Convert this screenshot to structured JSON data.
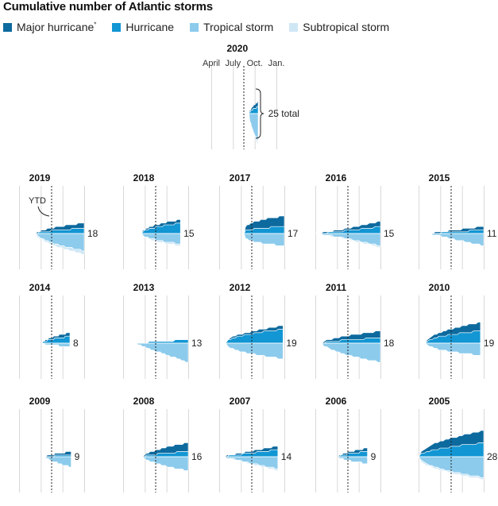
{
  "title": "Cumulative number of Atlantic storms",
  "legend": [
    {
      "label": "Major hurricane",
      "note": "*",
      "color": "#0d6a9e"
    },
    {
      "label": "Hurricane",
      "note": "",
      "color": "#1296d4"
    },
    {
      "label": "Tropical storm",
      "note": "",
      "color": "#8ccbec"
    },
    {
      "label": "Subtropical storm",
      "note": "",
      "color": "#cfe7f5"
    }
  ],
  "chart_data": {
    "type": "area",
    "description_units": "cumulative storm counts by date; above baseline = hurricanes (major darker), below baseline = tropical and subtropical storms",
    "month_ticks": [
      "April",
      "July",
      "Oct.",
      "Jan."
    ],
    "ytd_label": "YTD",
    "ytd_year": "2019",
    "total_suffix": "total",
    "years": [
      {
        "year": "2020",
        "total": 25,
        "major": 3,
        "hurricane": 4,
        "tropical": 16,
        "subtropical": 2,
        "start": 0.58,
        "end": 0.72,
        "shape": 0.6
      },
      {
        "year": "2019",
        "total": 18,
        "major": 3,
        "hurricane": 3,
        "tropical": 10,
        "subtropical": 2,
        "start": 0.25,
        "end": 1.0,
        "shape": 0.6
      },
      {
        "year": "2018",
        "total": 15,
        "major": 2,
        "hurricane": 6,
        "tropical": 6,
        "subtropical": 1,
        "start": 0.28,
        "end": 0.88,
        "shape": 0.5
      },
      {
        "year": "2017",
        "total": 17,
        "major": 6,
        "hurricane": 4,
        "tropical": 7,
        "subtropical": 0,
        "start": 0.38,
        "end": 1.0,
        "shape": 0.3
      },
      {
        "year": "2016",
        "total": 15,
        "major": 3,
        "hurricane": 4,
        "tropical": 7,
        "subtropical": 1,
        "start": 0.0,
        "end": 1.0,
        "shape": 1.2
      },
      {
        "year": "2015",
        "total": 11,
        "major": 2,
        "hurricane": 2,
        "tropical": 7,
        "subtropical": 0,
        "start": 0.15,
        "end": 1.0,
        "shape": 1.0
      },
      {
        "year": "2014",
        "total": 8,
        "major": 2,
        "hurricane": 4,
        "tropical": 2,
        "subtropical": 0,
        "start": 0.35,
        "end": 0.78,
        "shape": 0.6
      },
      {
        "year": "2013",
        "total": 13,
        "major": 0,
        "hurricane": 2,
        "tropical": 11,
        "subtropical": 0,
        "start": 0.2,
        "end": 1.0,
        "shape": 0.9
      },
      {
        "year": "2012",
        "total": 19,
        "major": 2,
        "hurricane": 8,
        "tropical": 9,
        "subtropical": 0,
        "start": 0.1,
        "end": 0.98,
        "shape": 0.5
      },
      {
        "year": "2011",
        "total": 18,
        "major": 4,
        "hurricane": 3,
        "tropical": 11,
        "subtropical": 0,
        "start": 0.1,
        "end": 1.0,
        "shape": 0.6
      },
      {
        "year": "2010",
        "total": 19,
        "major": 5,
        "hurricane": 7,
        "tropical": 7,
        "subtropical": 0,
        "start": 0.1,
        "end": 0.95,
        "shape": 0.5
      },
      {
        "year": "2009",
        "total": 9,
        "major": 2,
        "hurricane": 1,
        "tropical": 6,
        "subtropical": 0,
        "start": 0.4,
        "end": 0.8,
        "shape": 0.7
      },
      {
        "year": "2008",
        "total": 16,
        "major": 5,
        "hurricane": 3,
        "tropical": 8,
        "subtropical": 0,
        "start": 0.3,
        "end": 1.0,
        "shape": 0.6
      },
      {
        "year": "2007",
        "total": 14,
        "major": 2,
        "hurricane": 4,
        "tropical": 7,
        "subtropical": 1,
        "start": 0.05,
        "end": 0.9,
        "shape": 1.0
      },
      {
        "year": "2006",
        "total": 9,
        "major": 2,
        "hurricane": 3,
        "tropical": 4,
        "subtropical": 0,
        "start": 0.35,
        "end": 0.8,
        "shape": 0.6
      },
      {
        "year": "2005",
        "total": 28,
        "major": 7,
        "hurricane": 8,
        "tropical": 12,
        "subtropical": 1,
        "start": 0.0,
        "end": 1.0,
        "shape": 0.5
      }
    ]
  }
}
